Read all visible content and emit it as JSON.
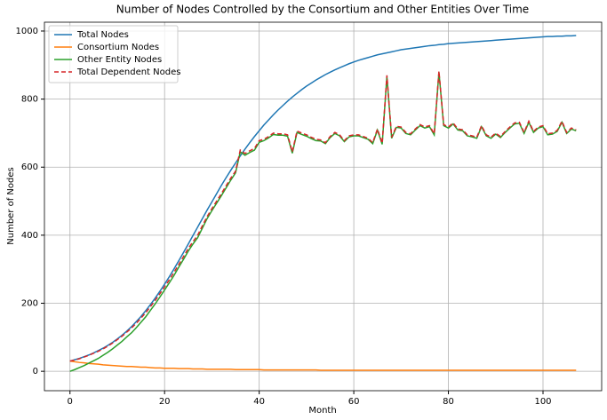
{
  "chart_data": {
    "type": "line",
    "title": "Number of Nodes Controlled by the Consortium and Other Entities Over Time",
    "x_label": "Month",
    "y_label": "Number of Nodes",
    "x": [
      0,
      1,
      2,
      3,
      4,
      5,
      6,
      7,
      8,
      9,
      10,
      11,
      12,
      13,
      14,
      15,
      16,
      17,
      18,
      19,
      20,
      21,
      22,
      23,
      24,
      25,
      26,
      27,
      28,
      29,
      30,
      31,
      32,
      33,
      34,
      35,
      36,
      37,
      38,
      39,
      40,
      41,
      42,
      43,
      44,
      45,
      46,
      47,
      48,
      49,
      50,
      51,
      52,
      53,
      54,
      55,
      56,
      57,
      58,
      59,
      60,
      61,
      62,
      63,
      64,
      65,
      66,
      67,
      68,
      69,
      70,
      71,
      72,
      73,
      74,
      75,
      76,
      77,
      78,
      79,
      80,
      81,
      82,
      83,
      84,
      85,
      86,
      87,
      88,
      89,
      90,
      91,
      92,
      93,
      94,
      95,
      96,
      97,
      98,
      99,
      100,
      101,
      102,
      103,
      104,
      105,
      106,
      107
    ],
    "series": [
      {
        "name": "Total Nodes",
        "color": "#1f77b4",
        "linestyle": "solid",
        "values": [
          30,
          34,
          38,
          43,
          48,
          54,
          61,
          68,
          76,
          85,
          95,
          106,
          118,
          131,
          146,
          161,
          178,
          196,
          215,
          235,
          256,
          278,
          301,
          325,
          349,
          374,
          399,
          424,
          449,
          474,
          498,
          522,
          546,
          569,
          591,
          612,
          633,
          653,
          672,
          690,
          707,
          724,
          739,
          754,
          768,
          781,
          794,
          806,
          817,
          828,
          838,
          847,
          856,
          864,
          872,
          879,
          886,
          892,
          898,
          904,
          909,
          914,
          918,
          922,
          926,
          930,
          933,
          936,
          939,
          942,
          945,
          947,
          949,
          951,
          953,
          955,
          957,
          958,
          960,
          961,
          963,
          964,
          965,
          966,
          967,
          968,
          969,
          970,
          971,
          972,
          973,
          974,
          975,
          976,
          977,
          978,
          979,
          980,
          981,
          982,
          983,
          984,
          984,
          985,
          985,
          986,
          986,
          987
        ]
      },
      {
        "name": "Consortium Nodes",
        "color": "#ff7f0e",
        "linestyle": "solid",
        "values": [
          30,
          28,
          26,
          25,
          23,
          22,
          21,
          19,
          18,
          17,
          16,
          15,
          14,
          14,
          13,
          12,
          12,
          11,
          10,
          10,
          9,
          9,
          9,
          8,
          8,
          8,
          7,
          7,
          7,
          6,
          6,
          6,
          6,
          6,
          6,
          5,
          5,
          5,
          5,
          5,
          5,
          4,
          4,
          4,
          4,
          4,
          4,
          4,
          4,
          4,
          4,
          4,
          4,
          3,
          3,
          3,
          3,
          3,
          3,
          3,
          3,
          3,
          3,
          3,
          3,
          3,
          3,
          3,
          3,
          3,
          3,
          3,
          3,
          3,
          3,
          3,
          3,
          3,
          3,
          3,
          3,
          3,
          3,
          3,
          3,
          3,
          3,
          3,
          3,
          3,
          3,
          3,
          3,
          3,
          3,
          3,
          3,
          3,
          3,
          3,
          3,
          3,
          3,
          3,
          3,
          3,
          3,
          3
        ]
      },
      {
        "name": "Other Entity Nodes",
        "color": "#2ca02c",
        "linestyle": "solid",
        "values": [
          0,
          5,
          11,
          17,
          24,
          31,
          38,
          47,
          56,
          66,
          77,
          88,
          101,
          113,
          128,
          144,
          160,
          179,
          198,
          218,
          239,
          260,
          282,
          306,
          329,
          353,
          374,
          393,
          421,
          449,
          472,
          494,
          516,
          539,
          562,
          583,
          645,
          635,
          643,
          650,
          673,
          678,
          686,
          696,
          694,
          694,
          691,
          641,
          702,
          696,
          691,
          684,
          678,
          677,
          669,
          687,
          699,
          692,
          675,
          689,
          692,
          692,
          687,
          682,
          669,
          709,
          667,
          867,
          685,
          717,
          715,
          699,
          695,
          709,
          722,
          715,
          719,
          695,
          879,
          722,
          715,
          727,
          709,
          707,
          692,
          689,
          685,
          719,
          692,
          685,
          697,
          687,
          702,
          715,
          727,
          729,
          699,
          732,
          702,
          715,
          719,
          695,
          697,
          705,
          732,
          699,
          712,
          707
        ]
      },
      {
        "name": "Total Dependent Nodes",
        "color": "#d62728",
        "linestyle": "dashed",
        "values": [
          30,
          33,
          37,
          42,
          47,
          53,
          59,
          66,
          74,
          83,
          93,
          103,
          115,
          127,
          141,
          156,
          172,
          190,
          208,
          228,
          248,
          269,
          291,
          314,
          337,
          361,
          381,
          400,
          428,
          455,
          478,
          500,
          522,
          545,
          568,
          588,
          650,
          640,
          648,
          655,
          678,
          682,
          690,
          700,
          698,
          698,
          695,
          645,
          706,
          700,
          695,
          688,
          682,
          680,
          672,
          690,
          702,
          695,
          678,
          692,
          695,
          695,
          690,
          685,
          672,
          712,
          670,
          870,
          688,
          720,
          718,
          702,
          698,
          712,
          725,
          718,
          722,
          698,
          882,
          725,
          718,
          730,
          712,
          710,
          695,
          692,
          688,
          722,
          695,
          688,
          700,
          690,
          705,
          718,
          730,
          732,
          702,
          735,
          705,
          718,
          722,
          698,
          700,
          708,
          735,
          702,
          715,
          710
        ]
      }
    ],
    "xlim": [
      -5.4,
      112.4
    ],
    "xticks": [
      0,
      20,
      40,
      60,
      80,
      100
    ],
    "ylim": [
      -57,
      1026
    ],
    "yticks": [
      0,
      200,
      400,
      600,
      800,
      1000
    ],
    "grid": true,
    "legend": "upper left"
  }
}
